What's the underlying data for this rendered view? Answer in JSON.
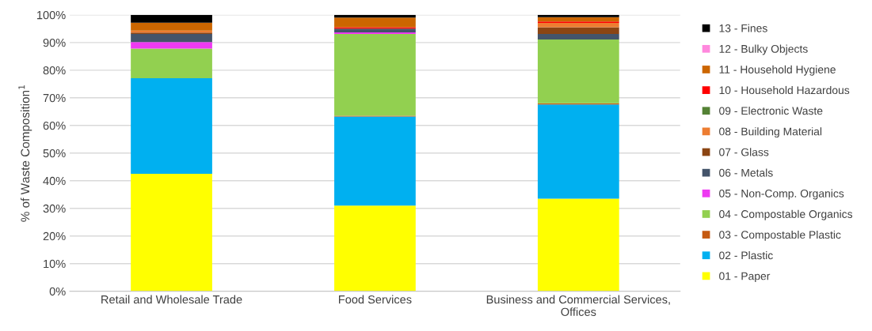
{
  "chart_data": {
    "type": "bar",
    "stacked": true,
    "ylabel": "% of Waste Composition$^{1}$",
    "categories": [
      "Retail and Wholesale Trade",
      "Food Services",
      "Business and Commercial Services,\nOffices"
    ],
    "ylim": [
      0,
      100
    ],
    "yticks": [
      {
        "value": 0,
        "label": "0%"
      },
      {
        "value": 10,
        "label": "10%"
      },
      {
        "value": 20,
        "label": "20%"
      },
      {
        "value": 30,
        "label": "30%"
      },
      {
        "value": 40,
        "label": "40%"
      },
      {
        "value": 50,
        "label": "50%"
      },
      {
        "value": 60,
        "label": "60%"
      },
      {
        "value": 70,
        "label": "70%"
      },
      {
        "value": 80,
        "label": "80%"
      },
      {
        "value": 90,
        "label": "90%"
      },
      {
        "value": 100,
        "label": "100%"
      }
    ],
    "grid": "y",
    "legend": "right",
    "series": [
      {
        "name": "01 - Paper",
        "color": "#ffff00",
        "values": [
          42.5,
          31.0,
          33.5
        ]
      },
      {
        "name": "02 - Plastic",
        "color": "#00b0f0",
        "values": [
          34.6,
          32.2,
          34.1
        ]
      },
      {
        "name": "03 - Compostable Plastic",
        "color": "#c55a11",
        "values": [
          0,
          0.3,
          0.4
        ]
      },
      {
        "name": "04 - Compostable Organics",
        "color": "#92d050",
        "values": [
          10.7,
          29.6,
          23.1
        ]
      },
      {
        "name": "05 - Non-Comp. Organics",
        "color": "#ee3af2",
        "values": [
          2.4,
          0.6,
          0
        ]
      },
      {
        "name": "06 - Metals",
        "color": "#44546a",
        "values": [
          2.9,
          1.3,
          2.0
        ]
      },
      {
        "name": "07 - Glass",
        "color": "#8b4513",
        "values": [
          0.5,
          0,
          2.4
        ]
      },
      {
        "name": "08 - Building Material",
        "color": "#ed7d31",
        "values": [
          0.7,
          0,
          1.6
        ]
      },
      {
        "name": "09 - Electronic Waste",
        "color": "#548235",
        "values": [
          0,
          0,
          0
        ]
      },
      {
        "name": "10 - Household Hazardous",
        "color": "#ff0000",
        "values": [
          0,
          0.5,
          0.5
        ]
      },
      {
        "name": "11 - Household Hygiene",
        "color": "#cc6600",
        "values": [
          2.9,
          3.5,
          1.6
        ]
      },
      {
        "name": "12 - Bulky Objects",
        "color": "#ff88dd",
        "values": [
          0,
          0,
          0
        ]
      },
      {
        "name": "13 - Fines",
        "color": "#000000",
        "values": [
          2.8,
          1.0,
          0.8
        ]
      }
    ]
  }
}
